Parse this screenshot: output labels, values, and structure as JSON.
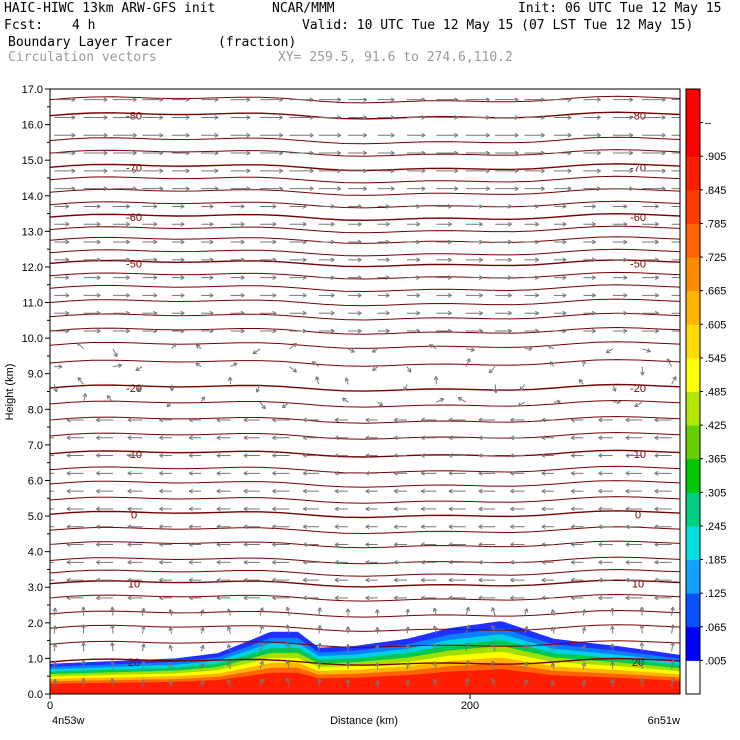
{
  "header": {
    "model_line": "HAIC-HIWC 13km ARW-GFS init",
    "org": "NCAR/MMM",
    "init": "Init: 06 UTC Tue 12 May 15",
    "fcst_label": "Fcst:",
    "fcst_value": "4 h",
    "valid": "Valid: 10 UTC Tue 12 May 15 (07 LST Tue 12 May 15)",
    "field_name": "Boundary Layer Tracer",
    "field_units": "(fraction)",
    "vectors_label": "Circulation vectors",
    "xy_label": "XY= 259.5, 91.6 to 274.6,110.2"
  },
  "chart_data": {
    "type": "heatmap",
    "title": "Boundary Layer Tracer",
    "xlabel": "Distance (km)",
    "ylabel": "Height (km)",
    "xlim": [
      0,
      300
    ],
    "ylim": [
      0,
      17
    ],
    "x_ticks": [
      {
        "value": 0,
        "label": "0"
      },
      {
        "value": 200,
        "label": "200"
      }
    ],
    "x_end_labels": {
      "left": "4n53w",
      "right": "6n51w"
    },
    "y_ticks": [
      "0.0",
      "1.0",
      "2.0",
      "3.0",
      "4.0",
      "5.0",
      "6.0",
      "7.0",
      "8.0",
      "9.0",
      "10.0",
      "11.0",
      "12.0",
      "13.0",
      "14.0",
      "15.0",
      "16.0",
      "17.0"
    ],
    "colorbar": {
      "labels": [
        ".005",
        ".065",
        ".125",
        ".185",
        ".245",
        ".305",
        ".365",
        ".425",
        ".485",
        ".545",
        ".605",
        ".665",
        ".725",
        ".785",
        ".845",
        ".905",
        "–"
      ],
      "colors": [
        "#ffffff",
        "#0000ff",
        "#0a50ff",
        "#14a0ff",
        "#00e0e0",
        "#00d080",
        "#00c800",
        "#64d200",
        "#b4e600",
        "#ffff00",
        "#ffdc00",
        "#ffb400",
        "#ff8c00",
        "#ff6400",
        "#ff3c00",
        "#ff1e00",
        "#ff0000",
        "#ff0000"
      ]
    },
    "tracer_top_km": [
      {
        "x": 0,
        "top": 0.85
      },
      {
        "x": 20,
        "top": 0.9
      },
      {
        "x": 60,
        "top": 1.0
      },
      {
        "x": 80,
        "top": 1.15
      },
      {
        "x": 95,
        "top": 1.5
      },
      {
        "x": 105,
        "top": 1.75
      },
      {
        "x": 118,
        "top": 1.75
      },
      {
        "x": 128,
        "top": 1.3
      },
      {
        "x": 145,
        "top": 1.35
      },
      {
        "x": 170,
        "top": 1.55
      },
      {
        "x": 190,
        "top": 1.85
      },
      {
        "x": 215,
        "top": 2.05
      },
      {
        "x": 240,
        "top": 1.55
      },
      {
        "x": 270,
        "top": 1.35
      },
      {
        "x": 300,
        "top": 1.1
      }
    ],
    "temperature_contours": [
      {
        "label": "-80",
        "y_km": 16.25
      },
      {
        "label": "-70",
        "y_km": 14.8
      },
      {
        "label": "-60",
        "y_km": 13.4
      },
      {
        "label": "-50",
        "y_km": 12.1
      },
      {
        "label": "-20",
        "y_km": 8.6
      },
      {
        "label": "-10",
        "y_km": 6.75
      },
      {
        "label": "0",
        "y_km": 5.05
      },
      {
        "label": "10",
        "y_km": 3.1
      },
      {
        "label": "20",
        "y_km": 0.9
      }
    ],
    "unlabeled_contour_km": [
      16.7,
      15.55,
      15.2,
      14.45,
      14.1,
      13.75,
      13.05,
      12.75,
      12.4,
      11.75,
      11.4,
      11.0,
      10.6,
      10.2,
      9.8,
      9.3,
      8.15,
      7.7,
      7.25,
      6.3,
      5.9,
      5.45,
      4.6,
      4.2,
      3.75,
      3.4,
      2.7,
      2.25,
      1.85,
      1.4
    ],
    "vector_regions": [
      {
        "z_min": 14.0,
        "z_max": 17.0,
        "direction": "east",
        "speed": "strong"
      },
      {
        "z_min": 10.0,
        "z_max": 14.0,
        "direction": "east",
        "speed": "moderate"
      },
      {
        "z_min": 8.0,
        "z_max": 10.0,
        "direction": "variable",
        "speed": "weak"
      },
      {
        "z_min": 2.5,
        "z_max": 8.0,
        "direction": "west",
        "speed": "moderate"
      },
      {
        "z_min": 0.0,
        "z_max": 2.5,
        "direction": "north",
        "speed": "weak"
      }
    ],
    "colors": {
      "contour": "#7a0000",
      "vector": "#777777",
      "axis": "#000000"
    }
  }
}
